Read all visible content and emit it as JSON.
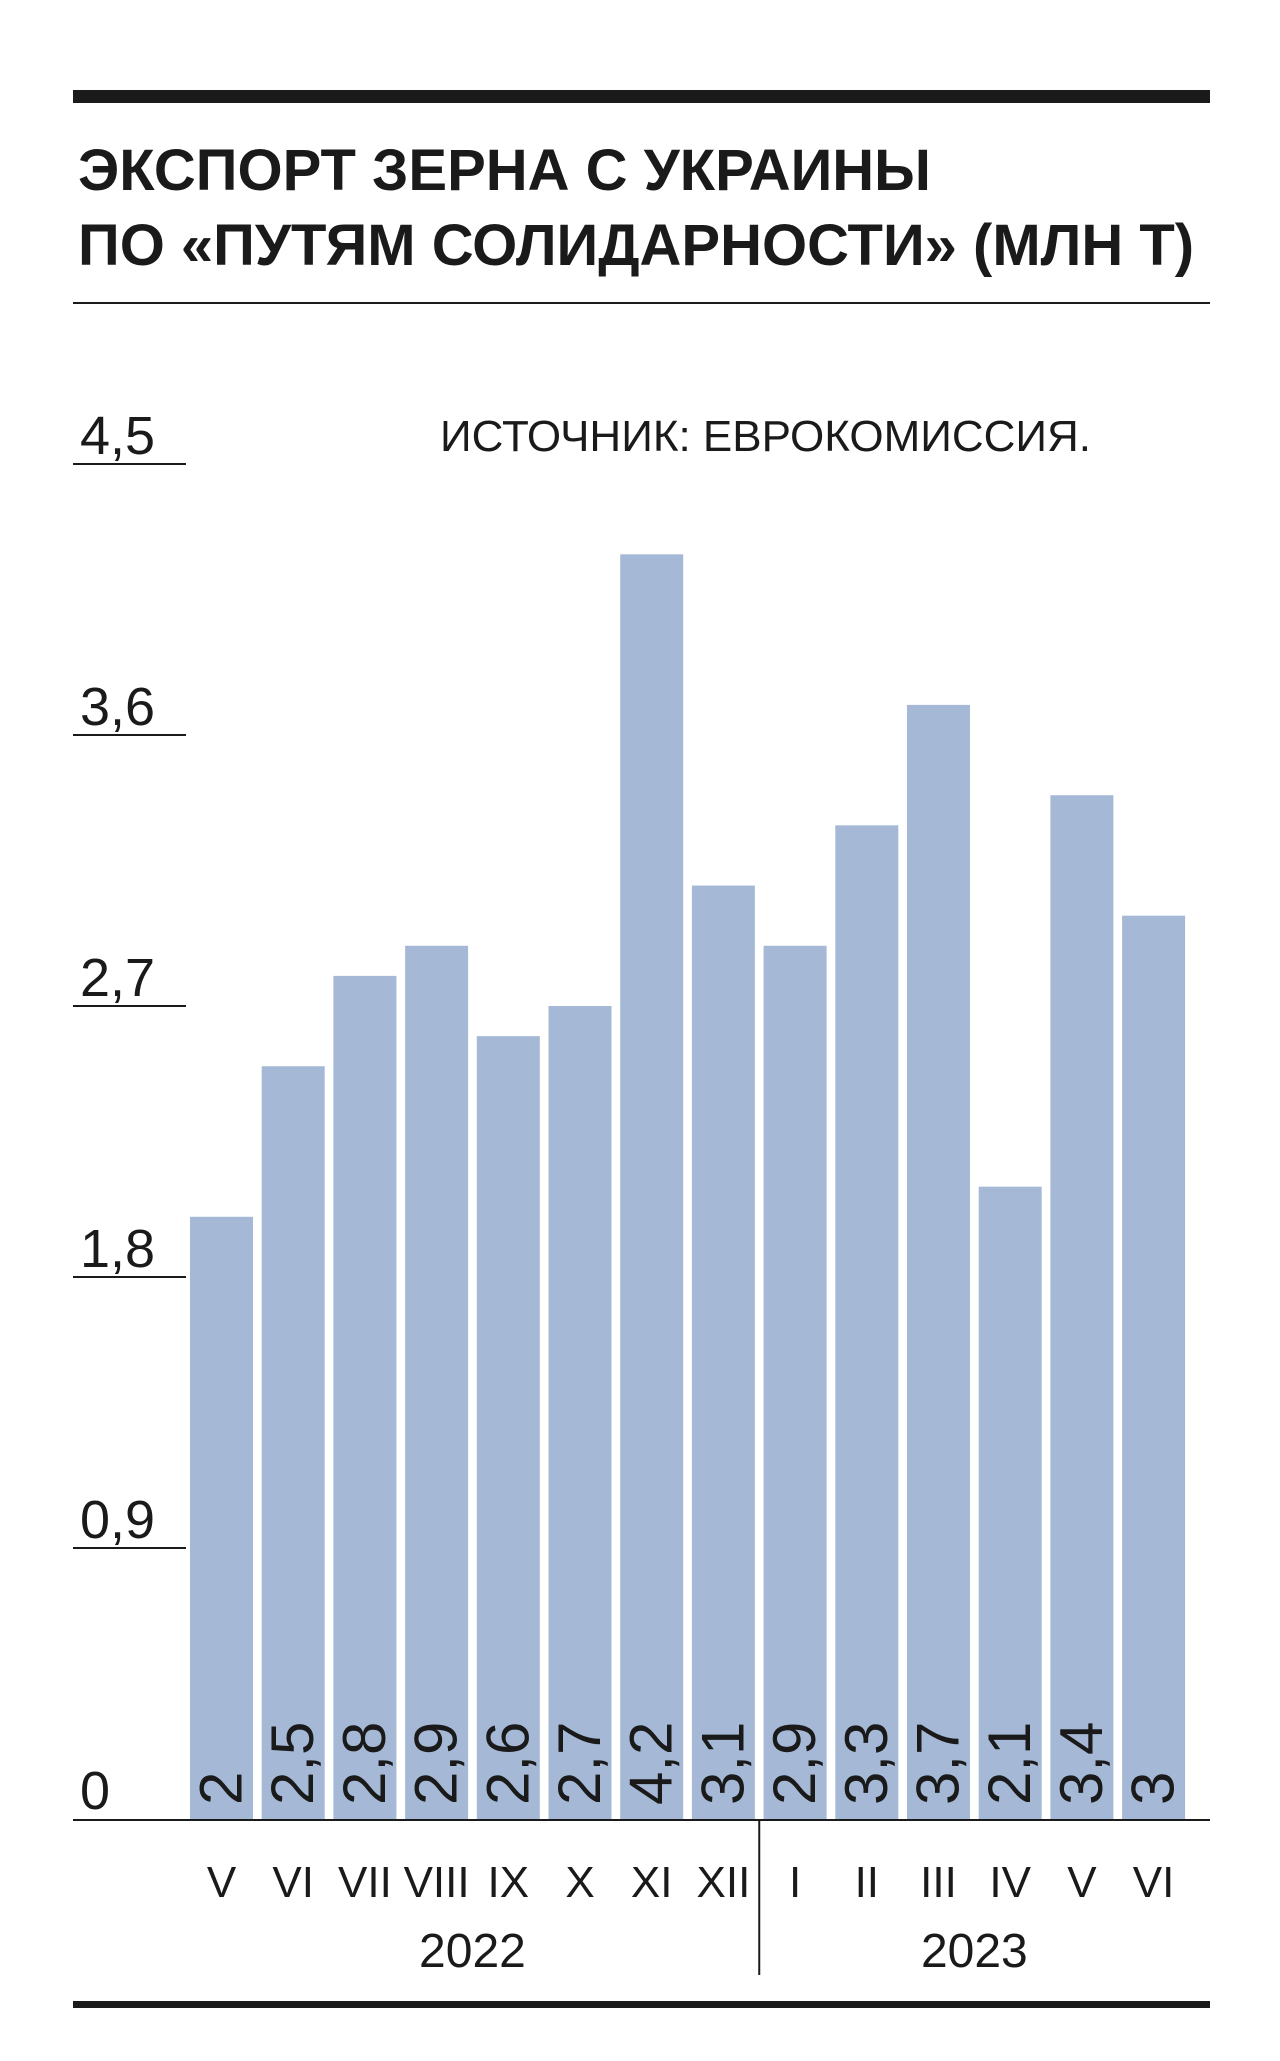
{
  "chart_data": {
    "type": "bar",
    "title_lines": [
      "ЭКСПОРТ ЗЕРНА С УКРАИНЫ",
      "ПО «ПУТЯМ СОЛИДАРНОСТИ» (МЛН Т)"
    ],
    "source": "ИСТОЧНИК: ЕВРОКОМИССИЯ.",
    "categories": [
      "V",
      "VI",
      "VII",
      "VIII",
      "IX",
      "X",
      "XI",
      "XII",
      "I",
      "II",
      "III",
      "IV",
      "V",
      "VI"
    ],
    "values": [
      2,
      2.5,
      2.8,
      2.9,
      2.6,
      2.7,
      4.2,
      3.1,
      2.9,
      3.3,
      3.7,
      2.1,
      3.4,
      3
    ],
    "value_labels": [
      "2",
      "2,5",
      "2,8",
      "2,9",
      "2,6",
      "2,7",
      "4,2",
      "3,1",
      "2,9",
      "3,3",
      "3,7",
      "2,1",
      "3,4",
      "3"
    ],
    "y_ticks": [
      0,
      0.9,
      1.8,
      2.7,
      3.6,
      4.5
    ],
    "y_tick_labels": [
      "0",
      "0,9",
      "1,8",
      "2,7",
      "3,6",
      "4,5"
    ],
    "ylim": [
      0,
      4.5
    ],
    "year_groups": [
      {
        "label": "2022",
        "count": 8
      },
      {
        "label": "2023",
        "count": 6
      }
    ],
    "bar_color": "#a5b9d6",
    "grid": false
  }
}
